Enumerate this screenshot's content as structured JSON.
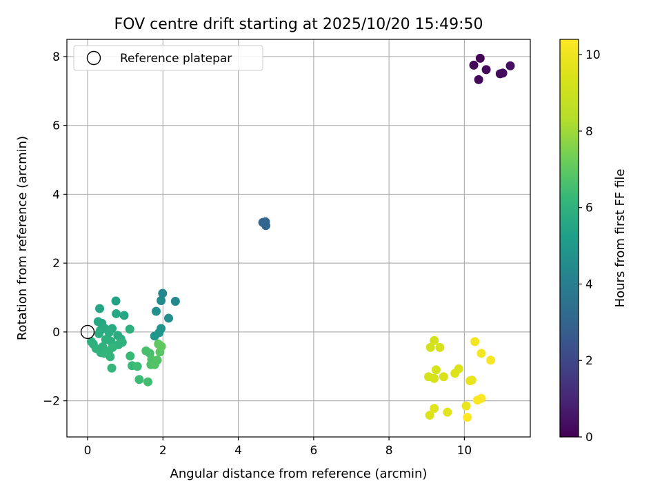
{
  "chart_data": {
    "type": "scatter",
    "title": "FOV centre drift starting at 2025/10/20 15:49:50",
    "xlabel": "Angular distance from reference (arcmin)",
    "ylabel": "Rotation from reference (arcmin)",
    "xlim": [
      -0.55,
      11.75
    ],
    "ylim": [
      -3.05,
      8.5
    ],
    "xticks": [
      0,
      2,
      4,
      6,
      8,
      10
    ],
    "yticks": [
      -2,
      0,
      2,
      4,
      6,
      8
    ],
    "grid": true,
    "legend": {
      "position": "top-left",
      "entries": [
        "Reference platepar"
      ]
    },
    "reference_point": {
      "x": 0,
      "y": 0,
      "label": "Reference platepar"
    },
    "colorbar": {
      "label": "Hours from first FF file",
      "range": [
        0,
        10.4
      ],
      "ticks": [
        0,
        2,
        4,
        6,
        8,
        10
      ],
      "colormap": "viridis"
    },
    "points": [
      {
        "x": 10.42,
        "y": 7.95,
        "t": 0.1
      },
      {
        "x": 10.25,
        "y": 7.75,
        "t": 0.1
      },
      {
        "x": 10.58,
        "y": 7.62,
        "t": 0.2
      },
      {
        "x": 10.38,
        "y": 7.33,
        "t": 0.2
      },
      {
        "x": 10.95,
        "y": 7.5,
        "t": 0.3
      },
      {
        "x": 11.02,
        "y": 7.52,
        "t": 0.3
      },
      {
        "x": 11.22,
        "y": 7.73,
        "t": 0.4
      },
      {
        "x": 4.65,
        "y": 3.18,
        "t": 3.0
      },
      {
        "x": 4.72,
        "y": 3.2,
        "t": 3.0
      },
      {
        "x": 4.7,
        "y": 3.15,
        "t": 3.1
      },
      {
        "x": 4.73,
        "y": 3.09,
        "t": 3.1
      },
      {
        "x": 1.99,
        "y": 1.12,
        "t": 4.3
      },
      {
        "x": 2.33,
        "y": 0.89,
        "t": 4.4
      },
      {
        "x": 1.95,
        "y": 0.91,
        "t": 4.5
      },
      {
        "x": 1.82,
        "y": 0.6,
        "t": 4.6
      },
      {
        "x": 2.15,
        "y": 0.4,
        "t": 4.6
      },
      {
        "x": 1.95,
        "y": 0.1,
        "t": 4.8
      },
      {
        "x": 1.9,
        "y": -0.02,
        "t": 4.9
      },
      {
        "x": 1.78,
        "y": -0.12,
        "t": 4.9
      },
      {
        "x": 0.75,
        "y": 0.9,
        "t": 5.4
      },
      {
        "x": 0.32,
        "y": 0.68,
        "t": 5.5
      },
      {
        "x": 0.97,
        "y": 0.48,
        "t": 5.5
      },
      {
        "x": 0.76,
        "y": 0.53,
        "t": 5.6
      },
      {
        "x": 0.28,
        "y": 0.3,
        "t": 5.6
      },
      {
        "x": 0.38,
        "y": 0.25,
        "t": 5.6
      },
      {
        "x": 0.46,
        "y": 0.1,
        "t": 5.7
      },
      {
        "x": 0.65,
        "y": 0.1,
        "t": 5.7
      },
      {
        "x": 0.34,
        "y": 0.05,
        "t": 5.7
      },
      {
        "x": 0.3,
        "y": -0.05,
        "t": 5.8
      },
      {
        "x": 0.57,
        "y": -0.02,
        "t": 5.8
      },
      {
        "x": 0.8,
        "y": -0.1,
        "t": 5.8
      },
      {
        "x": 0.88,
        "y": -0.2,
        "t": 5.8
      },
      {
        "x": 1.12,
        "y": 0.08,
        "t": 5.9
      },
      {
        "x": 0.1,
        "y": -0.28,
        "t": 5.9
      },
      {
        "x": 0.15,
        "y": -0.35,
        "t": 5.9
      },
      {
        "x": 0.48,
        "y": -0.22,
        "t": 5.9
      },
      {
        "x": 0.62,
        "y": -0.27,
        "t": 5.9
      },
      {
        "x": 0.22,
        "y": -0.48,
        "t": 6.0
      },
      {
        "x": 0.4,
        "y": -0.43,
        "t": 6.0
      },
      {
        "x": 0.92,
        "y": -0.3,
        "t": 6.0
      },
      {
        "x": 0.82,
        "y": -0.37,
        "t": 6.0
      },
      {
        "x": 0.35,
        "y": -0.6,
        "t": 6.0
      },
      {
        "x": 0.56,
        "y": -0.55,
        "t": 6.1
      },
      {
        "x": 0.66,
        "y": -0.45,
        "t": 6.1
      },
      {
        "x": 0.44,
        "y": -0.62,
        "t": 6.1
      },
      {
        "x": 0.6,
        "y": -0.72,
        "t": 6.1
      },
      {
        "x": 0.64,
        "y": -1.05,
        "t": 6.2
      },
      {
        "x": 1.13,
        "y": -0.7,
        "t": 6.3
      },
      {
        "x": 1.18,
        "y": -0.98,
        "t": 6.3
      },
      {
        "x": 1.32,
        "y": -1.0,
        "t": 6.4
      },
      {
        "x": 1.37,
        "y": -1.38,
        "t": 6.4
      },
      {
        "x": 1.6,
        "y": -1.45,
        "t": 6.5
      },
      {
        "x": 1.55,
        "y": -0.55,
        "t": 6.6
      },
      {
        "x": 1.65,
        "y": -0.62,
        "t": 6.6
      },
      {
        "x": 1.7,
        "y": -0.8,
        "t": 6.7
      },
      {
        "x": 1.68,
        "y": -0.95,
        "t": 6.7
      },
      {
        "x": 1.78,
        "y": -0.95,
        "t": 6.8
      },
      {
        "x": 1.85,
        "y": -0.82,
        "t": 6.8
      },
      {
        "x": 1.92,
        "y": -0.58,
        "t": 6.9
      },
      {
        "x": 1.88,
        "y": -0.35,
        "t": 7.0
      },
      {
        "x": 1.96,
        "y": -0.42,
        "t": 7.0
      },
      {
        "x": 9.2,
        "y": -0.25,
        "t": 9.2
      },
      {
        "x": 9.1,
        "y": -0.45,
        "t": 9.2
      },
      {
        "x": 9.35,
        "y": -0.45,
        "t": 9.3
      },
      {
        "x": 9.25,
        "y": -1.1,
        "t": 9.3
      },
      {
        "x": 9.05,
        "y": -1.3,
        "t": 9.3
      },
      {
        "x": 9.2,
        "y": -1.35,
        "t": 9.3
      },
      {
        "x": 9.45,
        "y": -1.3,
        "t": 9.4
      },
      {
        "x": 9.75,
        "y": -1.2,
        "t": 9.5
      },
      {
        "x": 9.85,
        "y": -1.07,
        "t": 9.5
      },
      {
        "x": 9.08,
        "y": -2.42,
        "t": 9.5
      },
      {
        "x": 9.2,
        "y": -2.22,
        "t": 9.6
      },
      {
        "x": 9.55,
        "y": -2.33,
        "t": 9.6
      },
      {
        "x": 10.15,
        "y": -1.42,
        "t": 9.8
      },
      {
        "x": 10.2,
        "y": -1.4,
        "t": 9.8
      },
      {
        "x": 10.05,
        "y": -2.15,
        "t": 9.9
      },
      {
        "x": 10.28,
        "y": -0.28,
        "t": 10.1
      },
      {
        "x": 10.45,
        "y": -0.62,
        "t": 10.1
      },
      {
        "x": 10.7,
        "y": -0.82,
        "t": 10.2
      },
      {
        "x": 10.35,
        "y": -1.98,
        "t": 10.3
      },
      {
        "x": 10.45,
        "y": -1.93,
        "t": 10.3
      },
      {
        "x": 10.08,
        "y": -2.48,
        "t": 10.4
      }
    ]
  }
}
